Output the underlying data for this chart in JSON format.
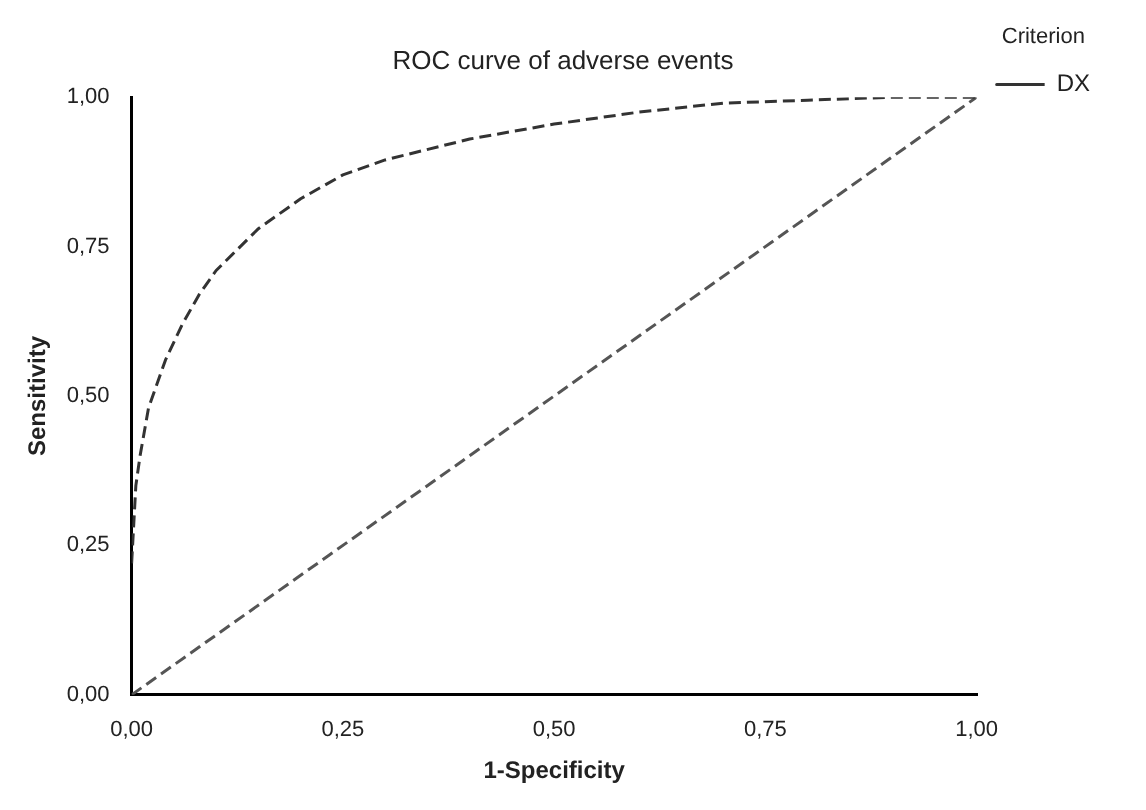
{
  "chart_data": {
    "type": "line",
    "title": "ROC curve of adverse events",
    "xlabel": "1-Specificity",
    "ylabel": "Sensitivity",
    "legend_title": "Criterion",
    "legend": "top right",
    "grid": false,
    "marker": "none",
    "xlim": [
      0,
      1
    ],
    "ylim": [
      0,
      1
    ],
    "xticks": [
      {
        "value": 0,
        "label": "0,00"
      },
      {
        "value": 0.25,
        "label": "0,25"
      },
      {
        "value": 0.5,
        "label": "0,50"
      },
      {
        "value": 0.75,
        "label": "0,75"
      },
      {
        "value": 1,
        "label": "1,00"
      }
    ],
    "yticks": [
      {
        "value": 0,
        "label": "0,00"
      },
      {
        "value": 0.25,
        "label": "0,25"
      },
      {
        "value": 0.5,
        "label": "0,50"
      },
      {
        "value": 0.75,
        "label": "0,75"
      },
      {
        "value": 1,
        "label": "1,00"
      }
    ],
    "series": [
      {
        "name": "DX",
        "color": "#333333",
        "line_style": "dashed",
        "x": [
          0,
          0.005,
          0.01,
          0.02,
          0.04,
          0.06,
          0.08,
          0.1,
          0.15,
          0.2,
          0.25,
          0.3,
          0.4,
          0.5,
          0.6,
          0.7,
          0.8,
          0.9,
          1
        ],
        "values": [
          0.22,
          0.35,
          0.4,
          0.48,
          0.56,
          0.62,
          0.67,
          0.71,
          0.78,
          0.83,
          0.87,
          0.895,
          0.93,
          0.955,
          0.975,
          0.99,
          0.995,
          1,
          1
        ]
      },
      {
        "color": "#555555",
        "line_style": "dashed",
        "x": [
          0,
          1
        ],
        "values": [
          0,
          1
        ]
      }
    ]
  }
}
